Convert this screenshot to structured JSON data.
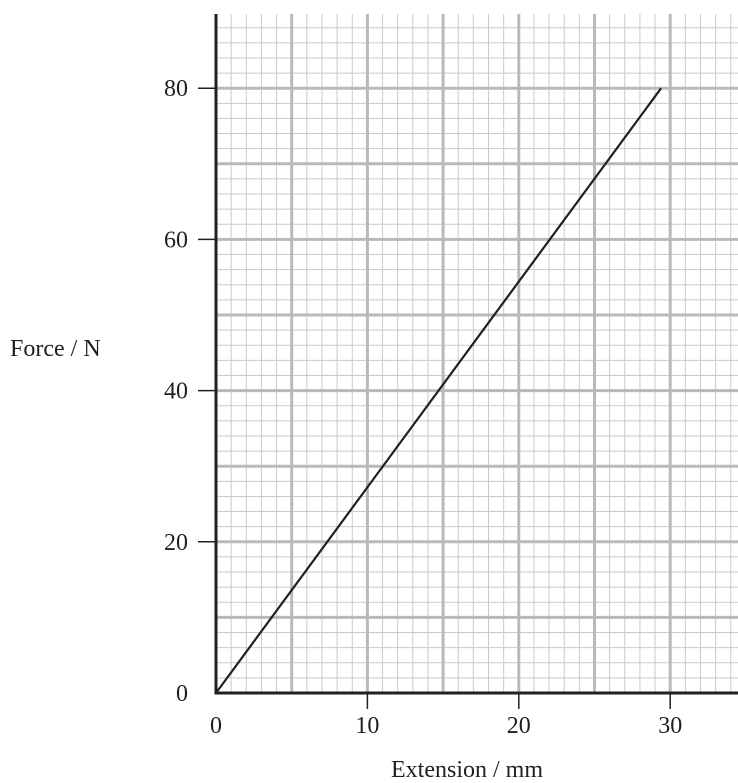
{
  "chart_data": {
    "type": "line",
    "title": "",
    "xlabel": "Extension / mm",
    "ylabel": "Force / N",
    "xlim": [
      0,
      34.5
    ],
    "ylim": [
      0,
      90
    ],
    "x_ticks": [
      "0",
      "10",
      "20",
      "30"
    ],
    "y_ticks": [
      "0",
      "20",
      "40",
      "60",
      "80"
    ],
    "grid": true,
    "series": [
      {
        "x": [
          0,
          29.4
        ],
        "y": [
          0,
          80
        ]
      }
    ],
    "colors": {
      "line": "#231f20",
      "axis": "#231f20",
      "grid_major": "#b8b9bb",
      "grid_minor": "#c9cacc"
    }
  }
}
